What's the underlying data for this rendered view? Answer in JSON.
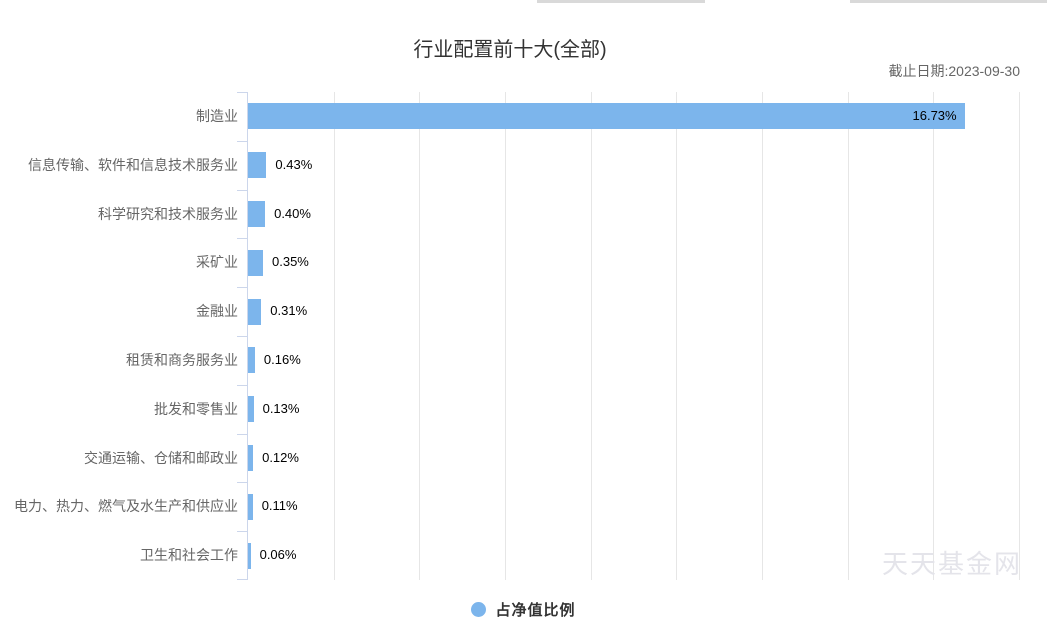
{
  "header": {
    "title": "行业配置前十大(全部)",
    "as_of_label": "截止日期:2023-09-30"
  },
  "chart_data": {
    "type": "bar",
    "orientation": "horizontal",
    "title": "行业配置前十大(全部)",
    "categories": [
      "制造业",
      "信息传输、软件和信息技术服务业",
      "科学研究和技术服务业",
      "采矿业",
      "金融业",
      "租赁和商务服务业",
      "批发和零售业",
      "交通运输、仓储和邮政业",
      "电力、热力、燃气及水生产和供应业",
      "卫生和社会工作"
    ],
    "series": [
      {
        "name": "占净值比例",
        "values": [
          16.73,
          0.43,
          0.4,
          0.35,
          0.31,
          0.16,
          0.13,
          0.12,
          0.11,
          0.06
        ],
        "labels": [
          "16.73%",
          "0.43%",
          "0.40%",
          "0.35%",
          "0.31%",
          "0.16%",
          "0.13%",
          "0.12%",
          "0.11%",
          "0.06%"
        ]
      }
    ],
    "xlim": [
      0,
      18
    ],
    "grid_interval": 2,
    "grid": true,
    "legend_position": "bottom",
    "bar_color": "#7cb5ec",
    "axis_color": "#ccd6eb",
    "grid_color": "#e6e6e6",
    "label_color": "#000000",
    "category_label_color": "#666666"
  },
  "legend": {
    "series_label": "占净值比例",
    "marker_color": "#7cb5ec"
  },
  "watermark": "天天基金网"
}
